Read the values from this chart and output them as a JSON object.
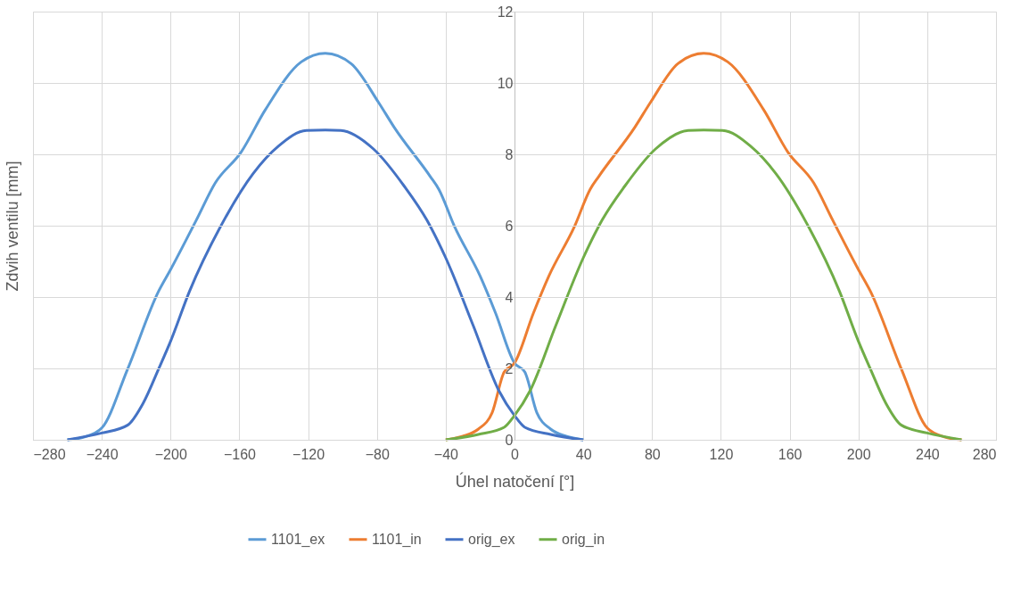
{
  "chart_data": {
    "type": "line",
    "xlabel": "Úhel natočení [°]",
    "ylabel": "Zdvih ventilu [mm]",
    "xlim": [
      -280,
      280
    ],
    "xticks": [
      -280,
      -240,
      -200,
      -160,
      -120,
      -80,
      -40,
      0,
      40,
      80,
      120,
      160,
      200,
      240,
      280
    ],
    "ylim": [
      0,
      12
    ],
    "yticks": [
      0,
      2,
      4,
      6,
      8,
      10,
      12
    ],
    "grid": true,
    "legend": "bottom",
    "marker": "none",
    "line_style": "solid",
    "series": [
      {
        "name": "1101_ex",
        "color": "#5b9bd5",
        "x": [
          -260,
          -250,
          -240,
          -225,
          -207,
          -200,
          -185,
          -174,
          -159,
          -145,
          -124,
          -110,
          -95,
          -79,
          -70,
          -49,
          -44,
          -35,
          -20,
          -11,
          0,
          6,
          13,
          21,
          30,
          40
        ],
        "values": [
          0,
          0.08,
          0.33,
          1.98,
          4.16,
          4.77,
          6.16,
          7.2,
          8.06,
          9.24,
          10.59,
          10.83,
          10.54,
          9.45,
          8.76,
          7.38,
          7.02,
          5.99,
          4.59,
          3.55,
          2.15,
          1.9,
          0.76,
          0.3,
          0.1,
          0
        ]
      },
      {
        "name": "1101_in",
        "color": "#ed7d31",
        "x": [
          -40,
          -30,
          -21,
          -13,
          -6,
          0,
          11,
          20,
          35,
          44,
          49,
          70,
          79,
          95,
          110,
          124,
          145,
          159,
          174,
          185,
          200,
          207,
          225,
          240,
          250,
          260
        ],
        "values": [
          0,
          0.1,
          0.3,
          0.76,
          1.9,
          2.15,
          3.55,
          4.59,
          5.99,
          7.02,
          7.38,
          8.76,
          9.45,
          10.54,
          10.83,
          10.59,
          9.24,
          8.06,
          7.2,
          6.16,
          4.77,
          4.16,
          1.98,
          0.33,
          0.08,
          0
        ]
      },
      {
        "name": "orig_ex",
        "color": "#4472c4",
        "x": [
          -260,
          -240,
          -225,
          -216,
          -207,
          -200,
          -189,
          -170,
          -152,
          -137,
          -121,
          -110,
          -101,
          -82,
          -64,
          -51,
          -40,
          -24,
          -9,
          0,
          6,
          21,
          40
        ],
        "values": [
          0,
          0.19,
          0.41,
          1.02,
          1.98,
          2.76,
          4.16,
          6.06,
          7.46,
          8.24,
          8.67,
          8.68,
          8.67,
          8.15,
          7.1,
          6.16,
          5.1,
          3.2,
          1.37,
          0.68,
          0.35,
          0.15,
          0
        ]
      },
      {
        "name": "orig_in",
        "color": "#70ad47",
        "x": [
          -40,
          -21,
          -6,
          0,
          9,
          24,
          40,
          51,
          64,
          82,
          101,
          110,
          121,
          137,
          152,
          170,
          189,
          200,
          207,
          216,
          225,
          240,
          260
        ],
        "values": [
          0,
          0.15,
          0.35,
          0.68,
          1.37,
          3.2,
          5.1,
          6.16,
          7.1,
          8.15,
          8.67,
          8.68,
          8.67,
          8.24,
          7.46,
          6.06,
          4.16,
          2.76,
          1.98,
          1.02,
          0.41,
          0.19,
          0
        ]
      }
    ]
  }
}
